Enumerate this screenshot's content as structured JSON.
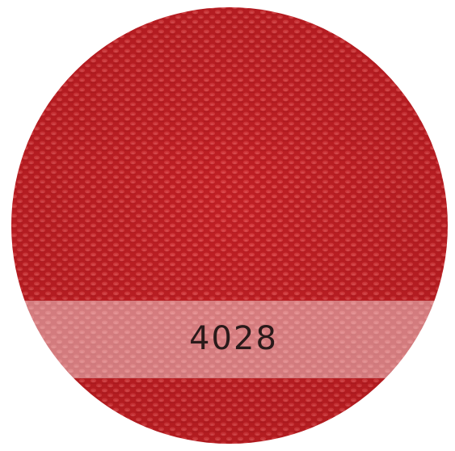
{
  "swatch": {
    "label": "4028"
  }
}
